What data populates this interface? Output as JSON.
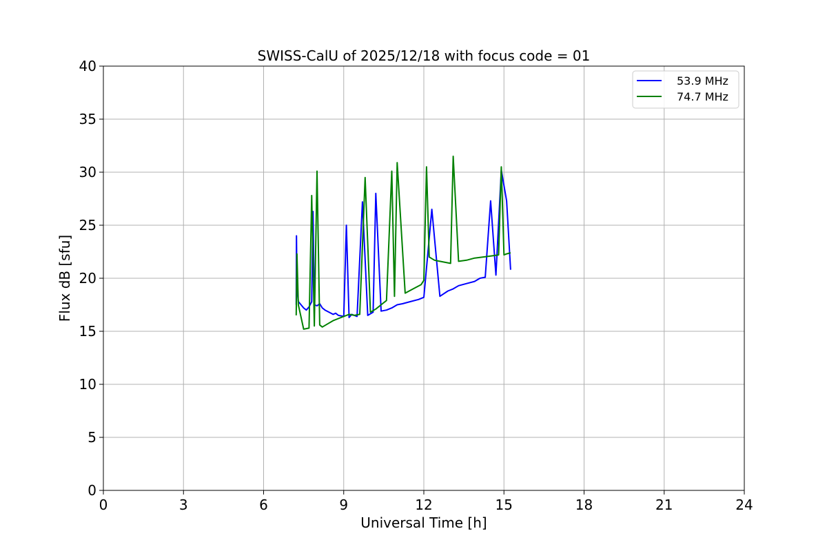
{
  "chart_data": {
    "type": "line",
    "title": "SWISS-CalU of 2025/12/18 with focus code = 01",
    "xlabel": "Universal Time [h]",
    "ylabel": "Flux dB [sfu]",
    "xlim": [
      0,
      24
    ],
    "ylim": [
      0,
      40
    ],
    "xticks": [
      0,
      3,
      6,
      9,
      12,
      15,
      18,
      21,
      24
    ],
    "yticks": [
      0,
      5,
      10,
      15,
      20,
      25,
      30,
      35,
      40
    ],
    "grid": true,
    "legend_position": "top-right",
    "series": [
      {
        "name": "53.9 MHz",
        "color": "#0000ff",
        "x": [
          7.22,
          7.23,
          7.25,
          7.3,
          7.4,
          7.5,
          7.6,
          7.7,
          7.8,
          7.85,
          7.9,
          8.0,
          8.1,
          8.2,
          8.3,
          8.45,
          8.6,
          8.7,
          8.8,
          9.0,
          9.1,
          9.2,
          9.3,
          9.5,
          9.7,
          9.9,
          10.1,
          10.2,
          10.4,
          10.6,
          10.8,
          11.0,
          11.2,
          11.5,
          11.8,
          12.0,
          12.3,
          12.6,
          12.9,
          13.1,
          13.3,
          13.6,
          13.9,
          14.1,
          14.3,
          14.5,
          14.7,
          14.9,
          15.1,
          15.25
        ],
        "y": [
          17.5,
          24.0,
          19.0,
          17.8,
          17.5,
          17.2,
          17.0,
          17.3,
          17.8,
          26.3,
          17.5,
          17.4,
          17.6,
          17.2,
          17.0,
          16.8,
          16.6,
          16.7,
          16.5,
          16.4,
          25.0,
          16.3,
          16.6,
          16.4,
          27.2,
          16.5,
          16.8,
          28.0,
          16.9,
          17.0,
          17.2,
          17.5,
          17.6,
          17.8,
          18.0,
          18.2,
          26.5,
          18.3,
          18.8,
          19.0,
          19.3,
          19.5,
          19.7,
          20.0,
          20.1,
          27.3,
          20.3,
          30.2,
          27.3,
          20.8
        ]
      },
      {
        "name": "74.7 MHz",
        "color": "#008000",
        "x": [
          7.22,
          7.25,
          7.3,
          7.5,
          7.7,
          7.8,
          7.9,
          8.0,
          8.1,
          8.2,
          8.4,
          8.6,
          8.8,
          9.0,
          9.2,
          9.4,
          9.6,
          9.8,
          10.0,
          10.2,
          10.4,
          10.6,
          10.8,
          10.9,
          11.0,
          11.3,
          11.6,
          11.9,
          12.0,
          12.1,
          12.2,
          12.4,
          12.6,
          12.8,
          13.0,
          13.1,
          13.3,
          13.6,
          13.9,
          14.2,
          14.5,
          14.8,
          14.9,
          15.0,
          15.1,
          15.25
        ],
        "y": [
          16.5,
          22.3,
          17.5,
          15.2,
          15.3,
          27.8,
          15.5,
          30.1,
          15.6,
          15.4,
          15.7,
          16.0,
          16.2,
          16.4,
          16.6,
          16.5,
          16.6,
          29.5,
          16.8,
          17.1,
          17.5,
          17.9,
          30.1,
          18.3,
          30.9,
          18.6,
          19.0,
          19.4,
          19.8,
          30.5,
          22.0,
          21.7,
          21.6,
          21.5,
          21.4,
          31.5,
          21.6,
          21.7,
          21.9,
          22.0,
          22.1,
          22.2,
          30.5,
          22.2,
          22.3,
          22.4
        ]
      }
    ]
  }
}
